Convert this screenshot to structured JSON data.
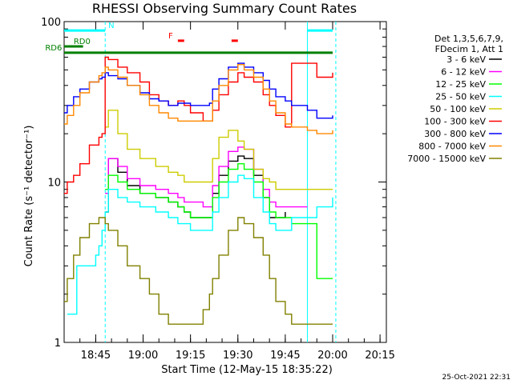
{
  "chart_data": {
    "type": "line",
    "title": "RHESSI Observing Summary Count Rates",
    "xlabel": "Start Time (12-May-15 18:35:22)",
    "ylabel": "Count Rate (s⁻¹ detector⁻¹)",
    "y_scale": "log",
    "ylim": [
      1,
      100
    ],
    "xlim_min": [
      0,
      102
    ],
    "x_tick_labels": [
      "18:45",
      "19:00",
      "19:15",
      "19:30",
      "19:45",
      "20:00",
      "20:15"
    ],
    "x_tick_min": [
      10,
      25,
      40,
      55,
      70,
      85,
      100
    ],
    "y_tick_labels": [
      "1",
      "10",
      "100"
    ],
    "y_tick_values": [
      1,
      10,
      100
    ],
    "legend_header": [
      "Det 1,3,5,6,7,9,",
      "FDecim 1, Att 1"
    ],
    "timestamp": "25-Oct-2021 22:31",
    "series": [
      {
        "name": "3 - 6 keV",
        "color": "#000000",
        "x": [
          0,
          12,
          13,
          14,
          17,
          20,
          24,
          29,
          33,
          36,
          38,
          40,
          44,
          46,
          47,
          49,
          52,
          55,
          57,
          60,
          63,
          65,
          67,
          70,
          72,
          77,
          85
        ],
        "y": [
          null,
          null,
          6.5,
          14,
          11.5,
          9.5,
          8.5,
          8.0,
          7.5,
          7.0,
          6.5,
          6.0,
          6.0,
          6.0,
          8.5,
          11,
          13.5,
          14.5,
          14,
          11,
          8,
          6,
          6,
          6.5,
          null,
          null,
          null
        ]
      },
      {
        "name": "6 - 12 keV",
        "color": "#ff00ff",
        "x": [
          0,
          12,
          13,
          14,
          17,
          20,
          24,
          29,
          33,
          36,
          38,
          40,
          44,
          46,
          47,
          49,
          52,
          55,
          57,
          60,
          63,
          65,
          67,
          70,
          72,
          77,
          85
        ],
        "y": [
          null,
          null,
          8.5,
          14,
          12.5,
          10.5,
          9.5,
          9.0,
          8.5,
          8.0,
          7.5,
          7.5,
          7.0,
          7.0,
          9.5,
          12.5,
          15.5,
          16.5,
          16,
          12,
          9,
          7.5,
          7.0,
          7.0,
          7.0,
          7.0,
          null
        ]
      },
      {
        "name": "12 - 25 keV",
        "color": "#00ff00",
        "x": [
          0,
          4,
          8,
          11,
          12,
          13,
          14,
          17,
          20,
          24,
          29,
          33,
          36,
          38,
          40,
          44,
          46,
          47,
          49,
          52,
          55,
          57,
          60,
          63,
          65,
          67,
          70,
          72,
          77,
          80,
          85
        ],
        "y": [
          null,
          null,
          null,
          null,
          null,
          9,
          11,
          10,
          9,
          8.5,
          8,
          7.5,
          7,
          6.5,
          6,
          6,
          6,
          8,
          10,
          12,
          13,
          12,
          10,
          8,
          6.5,
          6,
          6,
          5.5,
          5.5,
          2.5,
          2.5
        ]
      },
      {
        "name": "25 - 50 keV",
        "color": "#00ffff",
        "x": [
          0,
          1,
          2,
          3,
          4,
          6,
          8,
          10,
          11,
          12,
          13,
          14,
          17,
          20,
          24,
          29,
          33,
          36,
          38,
          40,
          44,
          46,
          47,
          49,
          52,
          55,
          57,
          60,
          63,
          65,
          67,
          70,
          72,
          77,
          80,
          85
        ],
        "y": [
          null,
          1.5,
          1.5,
          1.5,
          3,
          3,
          3,
          3.5,
          4,
          5,
          6.5,
          9,
          8,
          7.5,
          7,
          6.5,
          6,
          5.5,
          5.5,
          5,
          5,
          5,
          6.5,
          8,
          10,
          11,
          10.5,
          8,
          6.5,
          5.5,
          5,
          5,
          6,
          6,
          7,
          8
        ]
      },
      {
        "name": "50 - 100 keV",
        "color": "#cccc00",
        "x": [
          0,
          4,
          8,
          10,
          11,
          12,
          13,
          14,
          17,
          20,
          24,
          29,
          33,
          36,
          38,
          40,
          44,
          46,
          47,
          49,
          52,
          55,
          57,
          60,
          63,
          65,
          67,
          70,
          72,
          77,
          80,
          85
        ],
        "y": [
          null,
          null,
          null,
          null,
          null,
          null,
          22,
          28,
          20,
          16,
          14,
          12.5,
          11.5,
          11,
          10,
          10,
          10,
          10,
          14,
          19,
          21,
          18,
          16,
          12,
          10.5,
          10,
          9,
          9,
          9,
          9,
          9,
          9
        ]
      },
      {
        "name": "100 - 300 keV",
        "color": "#ff0000",
        "x": [
          0,
          1,
          3,
          5,
          8,
          11,
          12,
          13,
          14,
          17,
          20,
          24,
          27,
          30,
          33,
          36,
          38,
          40,
          44,
          46,
          47,
          49,
          52,
          55,
          57,
          60,
          63,
          65,
          67,
          70,
          72,
          77,
          80,
          85
        ],
        "y": [
          8.5,
          10,
          11,
          13,
          17,
          19,
          20,
          60,
          58,
          52,
          48,
          42,
          35,
          32,
          30,
          32,
          30,
          27,
          24,
          24,
          28,
          35,
          42,
          48,
          45,
          42,
          35,
          30,
          26,
          22,
          55,
          55,
          45,
          48
        ]
      },
      {
        "name": "300 - 800 keV",
        "color": "#0000ff",
        "x": [
          0,
          1,
          3,
          5,
          8,
          11,
          12,
          13,
          14,
          17,
          20,
          24,
          27,
          30,
          33,
          36,
          38,
          40,
          44,
          46,
          47,
          49,
          52,
          55,
          57,
          60,
          63,
          65,
          67,
          70,
          72,
          77,
          80,
          85
        ],
        "y": [
          27,
          30,
          34,
          38,
          42,
          44,
          45,
          48,
          46,
          44,
          40,
          36,
          33,
          32,
          30,
          31,
          31,
          30,
          30,
          31,
          38,
          44,
          52,
          55,
          52,
          48,
          43,
          38,
          34,
          32,
          30,
          28,
          25,
          26
        ]
      },
      {
        "name": "800 - 7000 keV",
        "color": "#ff8800",
        "x": [
          0,
          1,
          3,
          5,
          8,
          11,
          12,
          13,
          14,
          17,
          20,
          24,
          27,
          30,
          33,
          36,
          38,
          40,
          44,
          46,
          47,
          49,
          52,
          55,
          57,
          60,
          63,
          65,
          67,
          70,
          72,
          77,
          80,
          85
        ],
        "y": [
          23,
          26,
          30,
          36,
          42,
          46,
          48,
          52,
          50,
          45,
          40,
          35,
          30,
          27,
          25,
          24,
          24,
          24,
          24,
          24,
          32,
          40,
          50,
          54,
          50,
          45,
          38,
          32,
          27,
          23,
          22,
          21,
          20,
          21
        ]
      },
      {
        "name": "7000 - 15000 keV",
        "color": "#808000",
        "x": [
          0,
          1,
          3,
          5,
          8,
          11,
          12,
          13,
          14,
          17,
          20,
          24,
          27,
          30,
          33,
          36,
          38,
          40,
          44,
          46,
          47,
          49,
          52,
          55,
          57,
          60,
          63,
          65,
          67,
          70,
          72,
          77,
          80,
          85
        ],
        "y": [
          1.8,
          2.5,
          3.5,
          4.5,
          5.5,
          6,
          6,
          5.5,
          5,
          4,
          3,
          2.5,
          2,
          1.5,
          1.3,
          1.3,
          1.3,
          1.3,
          1.6,
          2,
          2.5,
          3.5,
          5,
          6,
          5.5,
          4.5,
          3.5,
          2.5,
          1.8,
          1.5,
          1.3,
          1.3,
          1.3,
          1.3
        ]
      }
    ],
    "annotations": [
      {
        "label": "N",
        "color": "#00ffff",
        "x": 14,
        "y": 88,
        "kind": "band",
        "x0": 0,
        "x1": 13
      },
      {
        "label": "",
        "color": "#00ffff",
        "kind": "band",
        "x0": 77,
        "x1": 85,
        "y": 88
      },
      {
        "label": "RD0",
        "color": "#008000",
        "x": 3,
        "y": 70,
        "kind": "band",
        "x0": 0,
        "x1": 6
      },
      {
        "label": "RD6",
        "color": "#008000",
        "x": -6,
        "y": 64,
        "kind": "band",
        "x0": 0,
        "x1": 85
      },
      {
        "label": "F",
        "color": "#ff0000",
        "x": 33,
        "y": 76,
        "kind": "band",
        "x0": 36,
        "x1": 38
      },
      {
        "label": "",
        "color": "#ff0000",
        "kind": "band",
        "x0": 53,
        "x1": 55,
        "y": 76
      }
    ],
    "vertical_lines": [
      {
        "x": 13,
        "color": "#00ffff",
        "style": "dashed"
      },
      {
        "x": 77,
        "color": "#00ffff",
        "style": "solid"
      },
      {
        "x": 86,
        "color": "#00ffff",
        "style": "dashed"
      }
    ]
  }
}
